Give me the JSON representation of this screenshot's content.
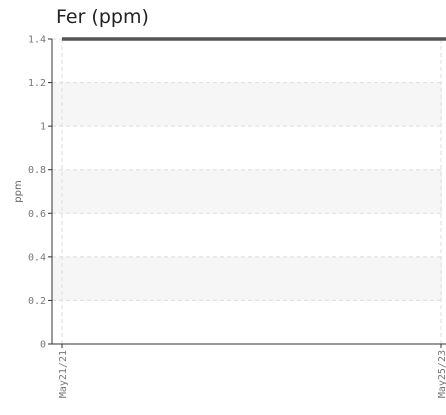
{
  "chart_data": {
    "type": "line",
    "title": "Fer (ppm)",
    "xlabel": "",
    "ylabel": "ppm",
    "x_ticks": [
      "May21/21",
      "May25/23"
    ],
    "y_ticks": [
      "0",
      "0.2",
      "0.4",
      "0.6",
      "0.8",
      "1",
      "1.2",
      "1.4"
    ],
    "ylim": [
      0,
      1.4
    ],
    "series": [
      {
        "x": [
          "May21/21",
          "May25/23"
        ],
        "values": [
          1.4,
          1.4
        ]
      }
    ],
    "grid": true,
    "band_color": "#f6f6f6",
    "grid_color": "#dddddd",
    "axis_color": "#333333",
    "line_color": "#555555"
  }
}
